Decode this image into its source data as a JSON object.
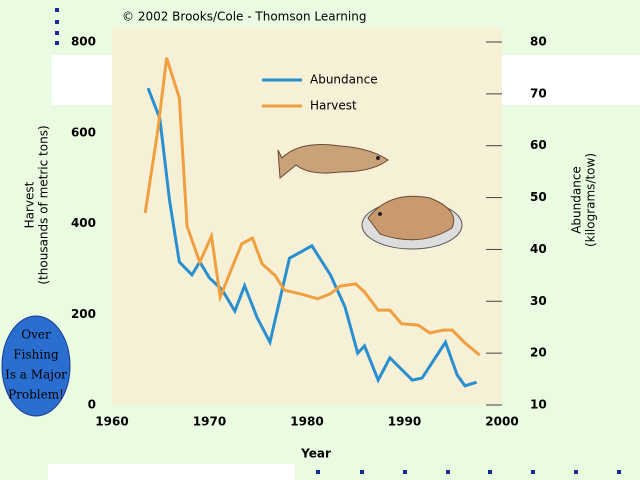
{
  "chart_data": {
    "type": "line",
    "credit": "© 2002 Brooks/Cole - Thomson Learning",
    "xlabel": "Year",
    "ylabel": [
      "Harvest",
      "(thousands of metric tons)"
    ],
    "y2label": [
      "Abundance",
      "(kilograms/tow)"
    ],
    "annotations": [
      "Over",
      "Fishing",
      "Is a  Major",
      "Problem!"
    ],
    "xlim": [
      1960,
      2000
    ],
    "xticks": [
      1960,
      1970,
      1980,
      1990,
      2000
    ],
    "ylim": [
      0,
      800
    ],
    "yticks": [
      0,
      200,
      400,
      600,
      800
    ],
    "y2lim": [
      10,
      80
    ],
    "y2ticks": [
      10,
      20,
      30,
      40,
      50,
      60,
      70,
      80
    ],
    "series": [
      {
        "name": "Abundance",
        "color": "#2a8fd0",
        "axis": "y2",
        "x": [
          1963.7,
          1964.9,
          1965.9,
          1966.9,
          1968.2,
          1969,
          1970,
          1971.3,
          1972.6,
          1973.6,
          1974.9,
          1976.2,
          1978.2,
          1980.5,
          1982.4,
          1983.9,
          1985.2,
          1985.9,
          1987.3,
          1988.5,
          1990.8,
          1991.8,
          1994.2,
          1995.4,
          1996.2,
          1997.4
        ],
        "values": [
          71.1,
          65.3,
          49.5,
          37.6,
          35.1,
          37.6,
          34.5,
          32.2,
          28.1,
          33,
          26.8,
          22.1,
          38.3,
          40.7,
          35.1,
          28.9,
          20,
          21.4,
          14.8,
          19.1,
          14.8,
          15.2,
          22.1,
          15.8,
          13.7,
          14.4
        ]
      },
      {
        "name": "Harvest",
        "color": "#f0a040",
        "axis": "y",
        "x": [
          1963.4,
          1964.7,
          1965.6,
          1966.9,
          1967.7,
          1969,
          1970.2,
          1971.1,
          1972.3,
          1973.3,
          1974.4,
          1975.4,
          1976.7,
          1977.7,
          1979.3,
          1981.1,
          1982.4,
          1983.4,
          1985,
          1985.9,
          1987.3,
          1988.5,
          1989.7,
          1991.4,
          1992.6,
          1994,
          1994.9,
          1996.2,
          1997.7
        ],
        "values": [
          423,
          606,
          765,
          677,
          394,
          315,
          372,
          238,
          302,
          355,
          368,
          311,
          286,
          253,
          245,
          234,
          245,
          262,
          267,
          249,
          209,
          209,
          179,
          176,
          159,
          165,
          165,
          137,
          110
        ]
      }
    ]
  }
}
